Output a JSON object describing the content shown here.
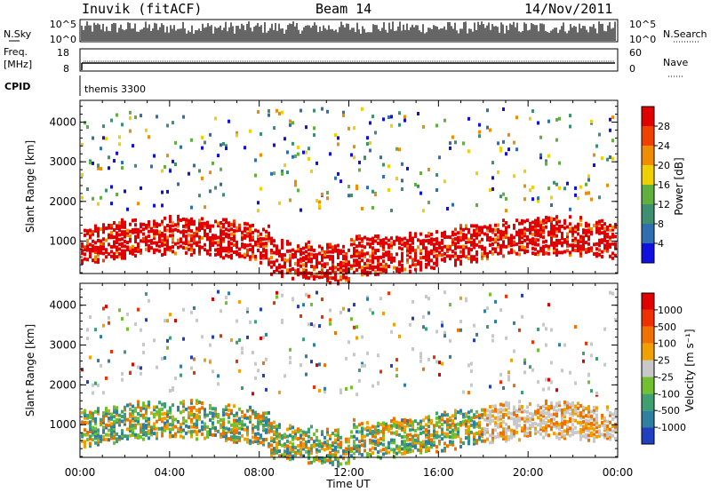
{
  "header": {
    "station": "Inuvik (fitACF)",
    "beam": "Beam 14",
    "date": "14/Nov/2011"
  },
  "panels": {
    "nsky_label": "N.Sky",
    "nsky_ticks": [
      "10^5",
      "10^0"
    ],
    "nsearch_label": "N.Search",
    "nsearch_ticks": [
      "10^5",
      "10^0"
    ],
    "freq_label_1": "Freq.",
    "freq_label_2": "[MHz]",
    "freq_ticks": [
      "18",
      "8"
    ],
    "nave_label": "Nave",
    "nave_ticks": [
      "60",
      "0"
    ],
    "cpid_label": "CPID",
    "cpid_value": "themis 3300"
  },
  "chart_data": [
    {
      "type": "heatmap",
      "name": "power",
      "xlabel": "",
      "ylabel": "Slant Range [km]",
      "x_ticks": [
        "00:00",
        "04:00",
        "08:00",
        "12:00",
        "16:00",
        "20:00",
        "00:00"
      ],
      "y_ticks": [
        1000,
        2000,
        3000,
        4000
      ],
      "ylim": [
        180,
        4550
      ],
      "colorbar_label": "Power [dB]",
      "colorbar_ticks": [
        "4",
        "8",
        "12",
        "16",
        "20",
        "24",
        "28"
      ],
      "colors": [
        "#1010e0",
        "#2f6fb0",
        "#3f9070",
        "#60b040",
        "#f0d000",
        "#f08c00",
        "#f04000",
        "#e00000"
      ]
    },
    {
      "type": "heatmap",
      "name": "velocity",
      "xlabel": "Time UT",
      "ylabel": "Slant Range [km]",
      "x_ticks": [
        "00:00",
        "04:00",
        "08:00",
        "12:00",
        "16:00",
        "20:00",
        "00:00"
      ],
      "y_ticks": [
        1000,
        2000,
        3000,
        4000
      ],
      "ylim": [
        180,
        4550
      ],
      "colorbar_label": "Velocity [m s⁻¹]",
      "colorbar_ticks": [
        "1000",
        "500",
        "100",
        "25",
        "-25",
        "-100",
        "-500",
        "-1000"
      ],
      "colors": [
        "#2040c0",
        "#2f7fa0",
        "#3f9f70",
        "#70c030",
        "#c8c8c8",
        "#f0a000",
        "#f07000",
        "#f03000",
        "#e00000"
      ]
    }
  ]
}
